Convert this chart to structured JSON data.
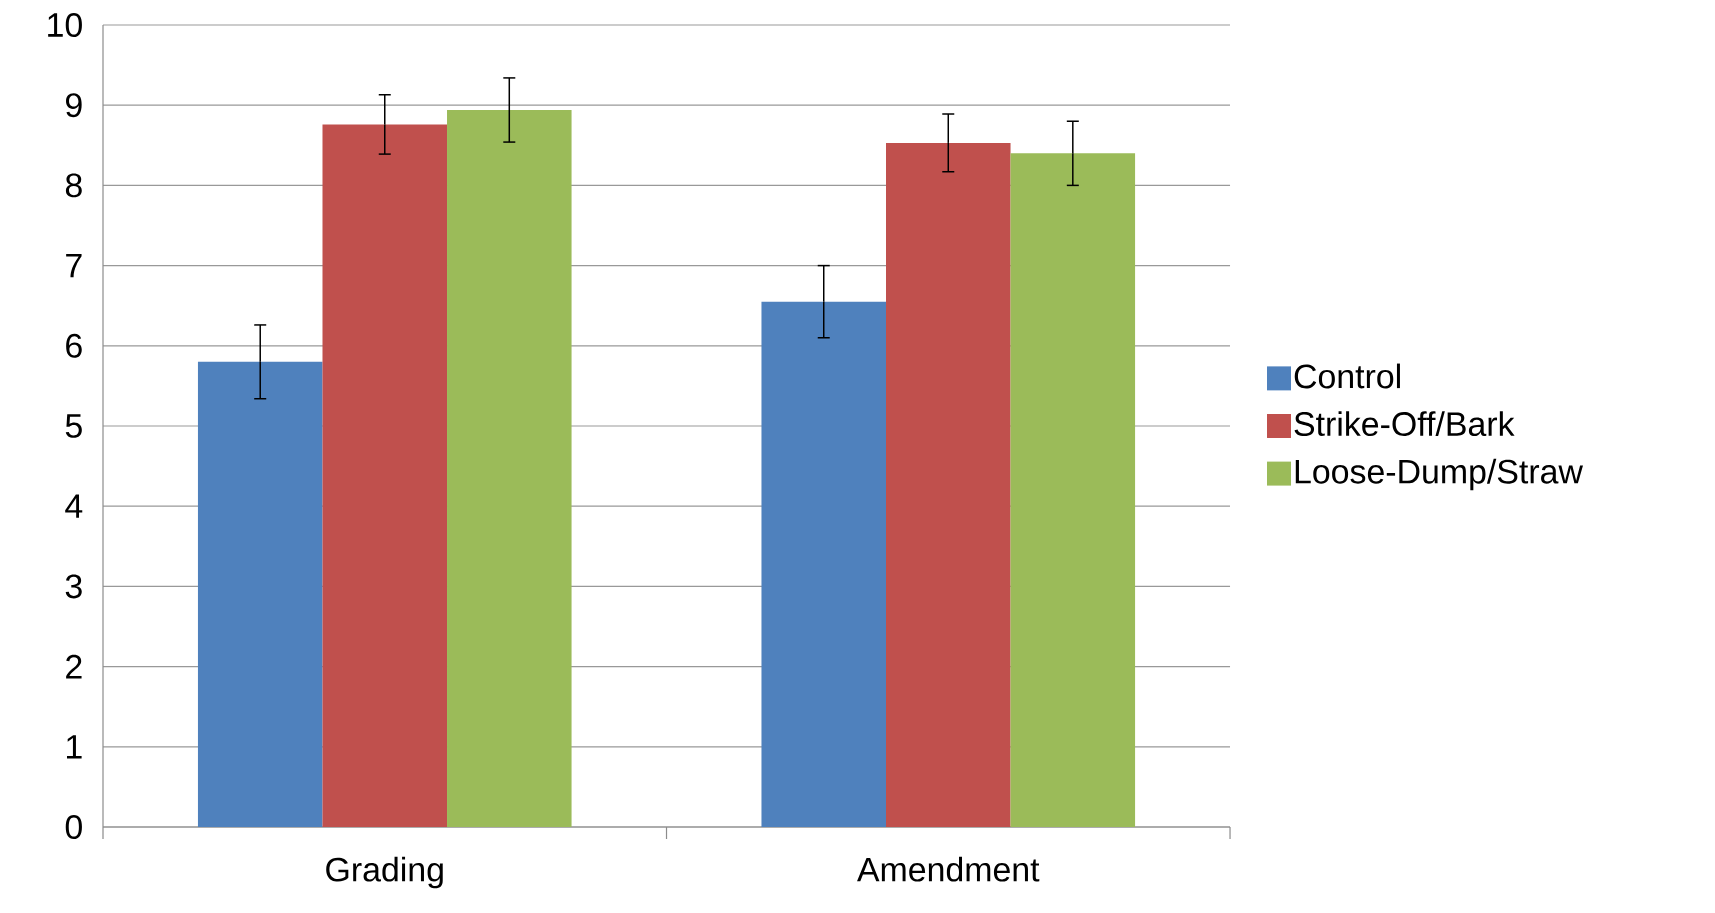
{
  "chart_data": {
    "type": "bar",
    "categories": [
      "Grading",
      "Amendment"
    ],
    "series": [
      {
        "name": "Control",
        "color": "#4f81bd",
        "values": [
          5.8,
          6.55
        ],
        "errors": [
          0.46,
          0.45
        ]
      },
      {
        "name": "Strike-Off/Bark",
        "color": "#c0504d",
        "values": [
          8.76,
          8.53
        ],
        "errors": [
          0.37,
          0.36
        ]
      },
      {
        "name": "Loose-Dump/Straw",
        "color": "#9bbb59",
        "values": [
          8.94,
          8.4
        ],
        "errors": [
          0.4,
          0.4
        ]
      }
    ],
    "ylim": [
      0,
      10
    ],
    "yticks": [
      0,
      1,
      2,
      3,
      4,
      5,
      6,
      7,
      8,
      9,
      10
    ],
    "grid": "y",
    "legend": "right"
  }
}
